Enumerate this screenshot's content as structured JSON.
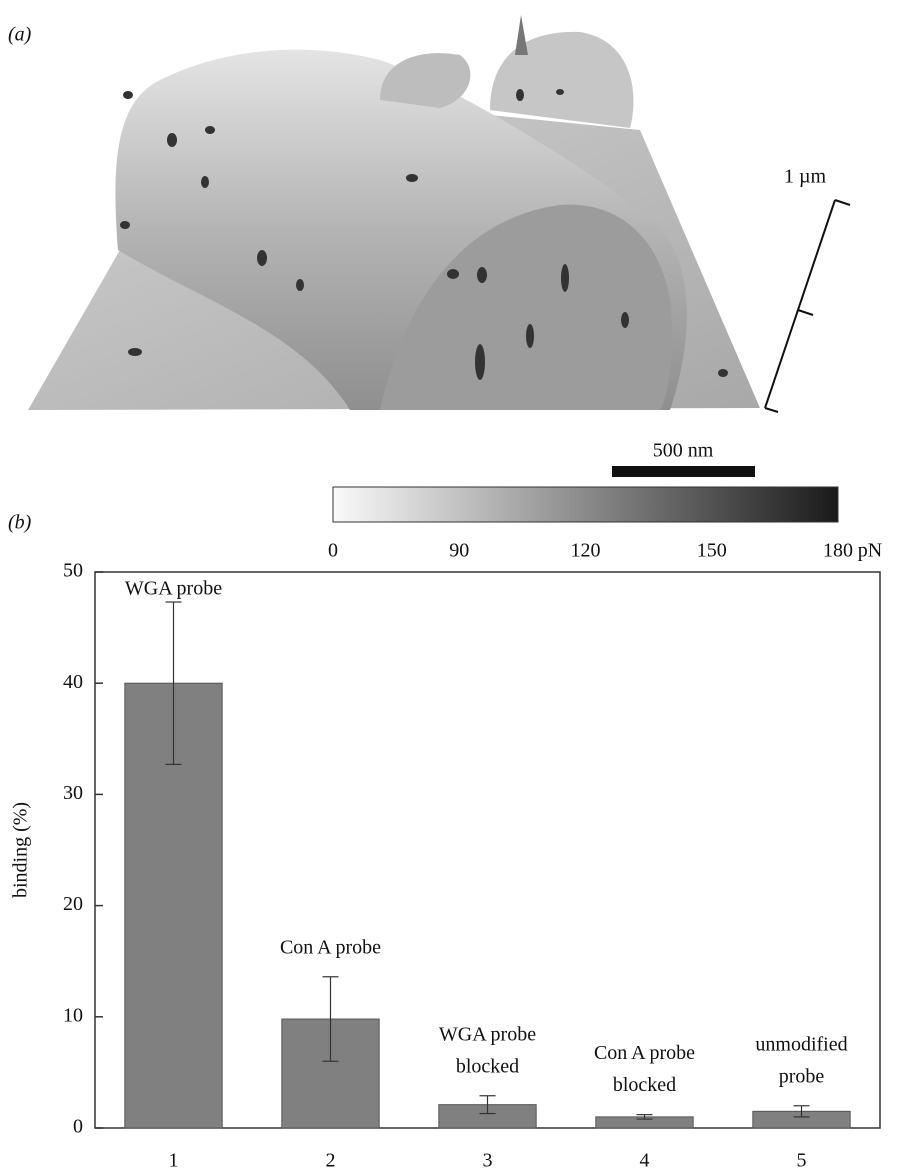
{
  "panel_a": {
    "label": "(a)",
    "height_scale": "1 µm",
    "scale_bar": "500 nm",
    "colorbar_ticks": [
      0,
      90,
      120,
      150,
      180
    ],
    "colorbar_unit": "pN"
  },
  "chart_data": {
    "type": "bar",
    "panel_label": "(b)",
    "y_label": "binding (%)",
    "categories": [
      "1",
      "2",
      "3",
      "4",
      "5"
    ],
    "values": [
      40,
      9.8,
      2.1,
      1.0,
      1.5
    ],
    "errors": [
      7.3,
      3.8,
      0.8,
      0.2,
      0.5
    ],
    "bar_labels": [
      [
        "WGA probe"
      ],
      [
        "Con A probe"
      ],
      [
        "WGA probe",
        "blocked"
      ],
      [
        "Con A probe",
        "blocked"
      ],
      [
        "unmodified",
        "probe"
      ]
    ],
    "color": "#808080",
    "ylim": [
      0,
      50
    ],
    "yticks": [
      0,
      10,
      20,
      30,
      40,
      50
    ]
  }
}
